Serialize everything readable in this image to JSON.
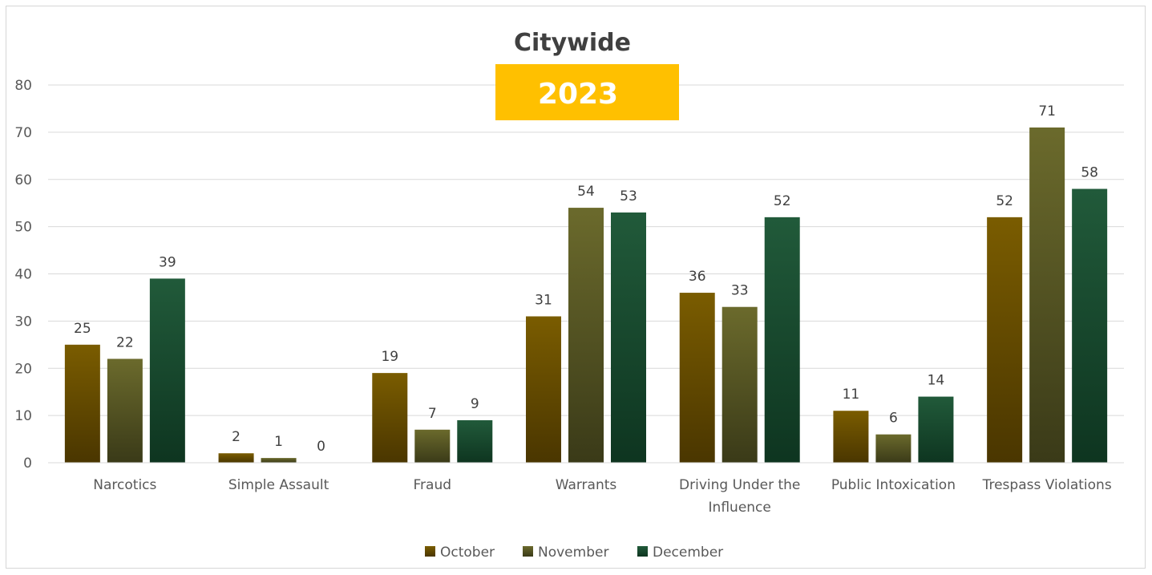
{
  "chart_data": {
    "type": "bar",
    "title": "Citywide",
    "subtitle": "2023",
    "categories": [
      [
        "Narcotics"
      ],
      [
        "Simple Assault"
      ],
      [
        "Fraud"
      ],
      [
        "Warrants"
      ],
      [
        "Driving Under the",
        "Influence"
      ],
      [
        "Public Intoxication"
      ],
      [
        "Trespass Violations"
      ]
    ],
    "series": [
      {
        "name": "October",
        "values": [
          25,
          2,
          19,
          31,
          36,
          11,
          52
        ]
      },
      {
        "name": "November",
        "values": [
          22,
          1,
          7,
          54,
          33,
          6,
          71
        ]
      },
      {
        "name": "December",
        "values": [
          39,
          0,
          9,
          53,
          52,
          14,
          58
        ]
      }
    ],
    "ylim": [
      0,
      80
    ],
    "yticks": [
      0,
      10,
      20,
      30,
      40,
      50,
      60,
      70,
      80
    ],
    "grid": true,
    "legend_position": "bottom",
    "colors": {
      "October": [
        "#7a5c00",
        "#4a3600"
      ],
      "November": [
        "#6b6a2c",
        "#3a3a18"
      ],
      "December": [
        "#215a3a",
        "#0e3520"
      ],
      "subtitle_box": "#ffc000",
      "gridline": "#d9d9d9",
      "axis": "#d9d9d9"
    }
  }
}
